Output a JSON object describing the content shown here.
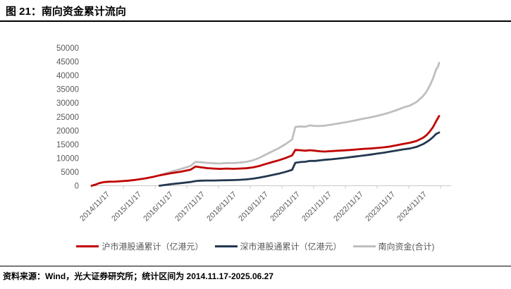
{
  "header": {
    "title": "图 21：南向资金累计流向"
  },
  "footer": {
    "source": "资料来源：Wind，光大证券研究所；统计区间为 2014.11.17-2025.06.27"
  },
  "colors": {
    "sh_line": "#C00000",
    "sz_line": "#22384F",
    "total_line": "#BFBFBF",
    "axis": "#C9C9C9",
    "tick_label": "#595959",
    "title_text": "#000000"
  },
  "chart_data": {
    "type": "line",
    "title": "南向资金累计流向",
    "xlabel": "",
    "ylabel": "",
    "ylim": [
      0,
      50000
    ],
    "yticks": [
      0,
      5000,
      10000,
      15000,
      20000,
      25000,
      30000,
      35000,
      40000,
      45000,
      50000
    ],
    "xtick_labels": [
      "2014/11/17",
      "2015/11/17",
      "2016/11/17",
      "2017/11/17",
      "2018/11/17",
      "2019/11/17",
      "2020/11/17",
      "2021/11/17",
      "2022/11/17",
      "2023/11/17",
      "2024/11/17"
    ],
    "x_domain_years": [
      2014.88,
      2025.49
    ],
    "grid": false,
    "legend_position": "bottom",
    "series": [
      {
        "name": "沪市港股通累计（亿港元）",
        "color": "#C00000",
        "points": [
          [
            2014.88,
            0
          ],
          [
            2015.0,
            400
          ],
          [
            2015.1,
            900
          ],
          [
            2015.25,
            1300
          ],
          [
            2015.4,
            1450
          ],
          [
            2015.6,
            1500
          ],
          [
            2015.8,
            1650
          ],
          [
            2016.0,
            1850
          ],
          [
            2016.2,
            2100
          ],
          [
            2016.5,
            2600
          ],
          [
            2016.75,
            3200
          ],
          [
            2016.95,
            3750
          ],
          [
            2017.1,
            4100
          ],
          [
            2017.3,
            4550
          ],
          [
            2017.6,
            5100
          ],
          [
            2017.9,
            5800
          ],
          [
            2018.05,
            6950
          ],
          [
            2018.2,
            6700
          ],
          [
            2018.4,
            6400
          ],
          [
            2018.6,
            6250
          ],
          [
            2018.8,
            6100
          ],
          [
            2019.0,
            6250
          ],
          [
            2019.2,
            6150
          ],
          [
            2019.4,
            6250
          ],
          [
            2019.6,
            6350
          ],
          [
            2019.8,
            6650
          ],
          [
            2020.0,
            7150
          ],
          [
            2020.2,
            7900
          ],
          [
            2020.4,
            8600
          ],
          [
            2020.6,
            9250
          ],
          [
            2020.8,
            10050
          ],
          [
            2021.0,
            11000
          ],
          [
            2021.1,
            13000
          ],
          [
            2021.25,
            12900
          ],
          [
            2021.4,
            12700
          ],
          [
            2021.55,
            12900
          ],
          [
            2021.7,
            12700
          ],
          [
            2021.85,
            12500
          ],
          [
            2022.0,
            12400
          ],
          [
            2022.2,
            12550
          ],
          [
            2022.4,
            12700
          ],
          [
            2022.6,
            12850
          ],
          [
            2022.8,
            13000
          ],
          [
            2023.0,
            13200
          ],
          [
            2023.2,
            13400
          ],
          [
            2023.4,
            13500
          ],
          [
            2023.6,
            13700
          ],
          [
            2023.8,
            13950
          ],
          [
            2024.0,
            14250
          ],
          [
            2024.2,
            14700
          ],
          [
            2024.4,
            15200
          ],
          [
            2024.6,
            15600
          ],
          [
            2024.8,
            16250
          ],
          [
            2025.0,
            17400
          ],
          [
            2025.1,
            18300
          ],
          [
            2025.2,
            19600
          ],
          [
            2025.3,
            21200
          ],
          [
            2025.4,
            23400
          ],
          [
            2025.49,
            25300
          ]
        ]
      },
      {
        "name": "深市港股通累计（亿港元）",
        "color": "#22384F",
        "points": [
          [
            2016.95,
            0
          ],
          [
            2017.1,
            250
          ],
          [
            2017.3,
            550
          ],
          [
            2017.6,
            950
          ],
          [
            2017.9,
            1350
          ],
          [
            2018.05,
            1700
          ],
          [
            2018.2,
            1850
          ],
          [
            2018.4,
            1900
          ],
          [
            2018.6,
            1900
          ],
          [
            2018.8,
            1950
          ],
          [
            2019.0,
            2000
          ],
          [
            2019.2,
            2050
          ],
          [
            2019.4,
            2150
          ],
          [
            2019.6,
            2300
          ],
          [
            2019.8,
            2550
          ],
          [
            2020.0,
            2950
          ],
          [
            2020.2,
            3400
          ],
          [
            2020.4,
            3900
          ],
          [
            2020.6,
            4400
          ],
          [
            2020.8,
            5050
          ],
          [
            2021.0,
            5750
          ],
          [
            2021.1,
            8300
          ],
          [
            2021.25,
            8600
          ],
          [
            2021.4,
            8700
          ],
          [
            2021.55,
            9000
          ],
          [
            2021.7,
            9000
          ],
          [
            2021.85,
            9200
          ],
          [
            2022.0,
            9400
          ],
          [
            2022.2,
            9600
          ],
          [
            2022.4,
            9850
          ],
          [
            2022.6,
            10100
          ],
          [
            2022.8,
            10400
          ],
          [
            2023.0,
            10700
          ],
          [
            2023.2,
            11000
          ],
          [
            2023.4,
            11300
          ],
          [
            2023.6,
            11650
          ],
          [
            2023.8,
            12000
          ],
          [
            2024.0,
            12400
          ],
          [
            2024.2,
            12800
          ],
          [
            2024.4,
            13200
          ],
          [
            2024.6,
            13500
          ],
          [
            2024.8,
            14100
          ],
          [
            2025.0,
            15100
          ],
          [
            2025.1,
            15800
          ],
          [
            2025.2,
            16600
          ],
          [
            2025.3,
            17600
          ],
          [
            2025.4,
            18800
          ],
          [
            2025.49,
            19300
          ]
        ]
      },
      {
        "name": "南向资金(合计)",
        "color": "#BFBFBF",
        "points": [
          [
            2016.95,
            3750
          ],
          [
            2017.1,
            4350
          ],
          [
            2017.3,
            5100
          ],
          [
            2017.6,
            6050
          ],
          [
            2017.9,
            7150
          ],
          [
            2018.05,
            8650
          ],
          [
            2018.2,
            8550
          ],
          [
            2018.4,
            8300
          ],
          [
            2018.6,
            8150
          ],
          [
            2018.8,
            8050
          ],
          [
            2019.0,
            8250
          ],
          [
            2019.2,
            8200
          ],
          [
            2019.4,
            8400
          ],
          [
            2019.6,
            8650
          ],
          [
            2019.8,
            9200
          ],
          [
            2020.0,
            10100
          ],
          [
            2020.2,
            11300
          ],
          [
            2020.4,
            12500
          ],
          [
            2020.6,
            13650
          ],
          [
            2020.8,
            15100
          ],
          [
            2021.0,
            16750
          ],
          [
            2021.1,
            21300
          ],
          [
            2021.25,
            21500
          ],
          [
            2021.4,
            21400
          ],
          [
            2021.55,
            21900
          ],
          [
            2021.7,
            21700
          ],
          [
            2021.85,
            21700
          ],
          [
            2022.0,
            21800
          ],
          [
            2022.2,
            22150
          ],
          [
            2022.4,
            22550
          ],
          [
            2022.6,
            22950
          ],
          [
            2022.8,
            23400
          ],
          [
            2023.0,
            23900
          ],
          [
            2023.2,
            24400
          ],
          [
            2023.4,
            24800
          ],
          [
            2023.6,
            25350
          ],
          [
            2023.8,
            25950
          ],
          [
            2024.0,
            26650
          ],
          [
            2024.2,
            27500
          ],
          [
            2024.4,
            28400
          ],
          [
            2024.6,
            29100
          ],
          [
            2024.8,
            30350
          ],
          [
            2025.0,
            32500
          ],
          [
            2025.1,
            34100
          ],
          [
            2025.2,
            36200
          ],
          [
            2025.3,
            38800
          ],
          [
            2025.4,
            42200
          ],
          [
            2025.46,
            43300
          ],
          [
            2025.49,
            44600
          ]
        ]
      }
    ]
  }
}
